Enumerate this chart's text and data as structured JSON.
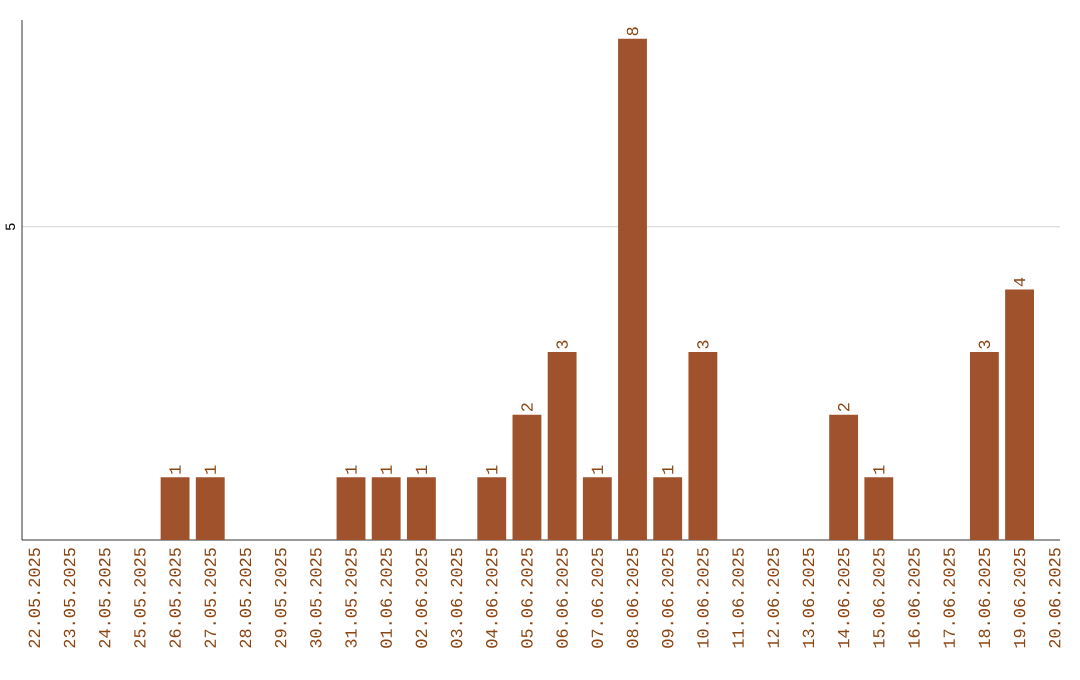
{
  "chart_data": {
    "type": "bar",
    "categories": [
      "22.05.2025",
      "23.05.2025",
      "24.05.2025",
      "25.05.2025",
      "26.05.2025",
      "27.05.2025",
      "28.05.2025",
      "29.05.2025",
      "30.05.2025",
      "31.05.2025",
      "01.06.2025",
      "02.06.2025",
      "03.06.2025",
      "04.06.2025",
      "05.06.2025",
      "06.06.2025",
      "07.06.2025",
      "08.06.2025",
      "09.06.2025",
      "10.06.2025",
      "11.06.2025",
      "12.06.2025",
      "13.06.2025",
      "14.06.2025",
      "15.06.2025",
      "16.06.2025",
      "17.06.2025",
      "18.06.2025",
      "19.06.2025",
      "20.06.2025"
    ],
    "values": [
      0,
      0,
      0,
      0,
      1,
      1,
      0,
      0,
      0,
      1,
      1,
      1,
      0,
      1,
      2,
      3,
      1,
      8,
      1,
      3,
      0,
      0,
      0,
      2,
      1,
      0,
      0,
      3,
      4,
      0
    ],
    "value_labels": [
      null,
      null,
      null,
      null,
      "1",
      "1",
      null,
      null,
      null,
      "1",
      "1",
      "1",
      null,
      "1",
      "2",
      "3",
      "1",
      "8",
      "1",
      "3",
      null,
      null,
      null,
      "2",
      "1",
      null,
      null,
      "3",
      "4",
      null
    ],
    "color": "#a0522d",
    "ylim": [
      0,
      8.3
    ],
    "yticks": [
      5
    ],
    "grid": "y"
  }
}
